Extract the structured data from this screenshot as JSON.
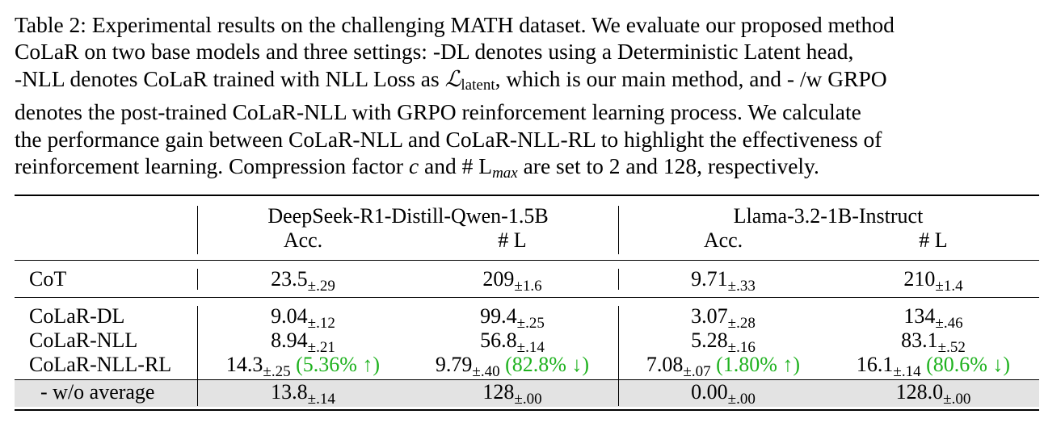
{
  "caption": {
    "lines": [
      "Table 2: Experimental results on the challenging MATH dataset. We evaluate our proposed method",
      "CoLaR on two base models and three settings:  -DL denotes using a Deterministic Latent head,",
      "-NLL denotes CoLaR trained with NLL Loss as ",
      ", which is our main method, and - /w GRPO",
      "denotes the post-trained CoLaR-NLL with GRPO reinforcement learning process.  We calculate",
      "the performance gain between CoLaR-NLL and CoLaR-NLL-RL to highlight the effectiveness of",
      "reinforcement learning. Compression factor ",
      " and # L",
      " are set to 2 and 128, respectively."
    ],
    "loss_symbol": "ℒ",
    "loss_sub": "latent",
    "c_symbol": "c",
    "max_sub": "max"
  },
  "table": {
    "models": [
      "DeepSeek-R1-Distill-Qwen-1.5B",
      "Llama-3.2-1B-Instruct"
    ],
    "columns": [
      "Acc.",
      "# L",
      "Acc.",
      "# L"
    ],
    "rows": [
      {
        "method": "CoT",
        "cells": [
          {
            "v": "23.5",
            "pm": "±.29"
          },
          {
            "v": "209",
            "pm": "±1.6"
          },
          {
            "v": "9.71",
            "pm": "±.33"
          },
          {
            "v": "210",
            "pm": "±1.4"
          }
        ]
      },
      {
        "method": "CoLaR-DL",
        "cells": [
          {
            "v": "9.04",
            "pm": "±.12"
          },
          {
            "v": "99.4",
            "pm": "±.25"
          },
          {
            "v": "3.07",
            "pm": "±.28"
          },
          {
            "v": "134",
            "pm": "±.46"
          }
        ]
      },
      {
        "method": "CoLaR-NLL",
        "cells": [
          {
            "v": "8.94",
            "pm": "±.21"
          },
          {
            "v": "56.8",
            "pm": "±.14"
          },
          {
            "v": "5.28",
            "pm": "±.16"
          },
          {
            "v": "83.1",
            "pm": "±.52"
          }
        ]
      },
      {
        "method": "CoLaR-NLL-RL",
        "cells": [
          {
            "v": "14.3",
            "pm": "±.25",
            "gain": "(5.36% ↑)"
          },
          {
            "v": "9.79",
            "pm": "±.40",
            "gain": "(82.8% ↓)"
          },
          {
            "v": "7.08",
            "pm": "±.07",
            "gain": "(1.80% ↑)"
          },
          {
            "v": "16.1",
            "pm": "±.14",
            "gain": "(80.6% ↓)"
          }
        ]
      },
      {
        "method": "- w/o average",
        "cells": [
          {
            "v": "13.8",
            "pm": "±.14"
          },
          {
            "v": "128",
            "pm": "±.00"
          },
          {
            "v": "0.00",
            "pm": "±.00"
          },
          {
            "v": "128.0",
            "pm": "±.00"
          }
        ]
      }
    ],
    "gain_color": "#1fb21f",
    "shade_color": "#e3e3e3"
  }
}
